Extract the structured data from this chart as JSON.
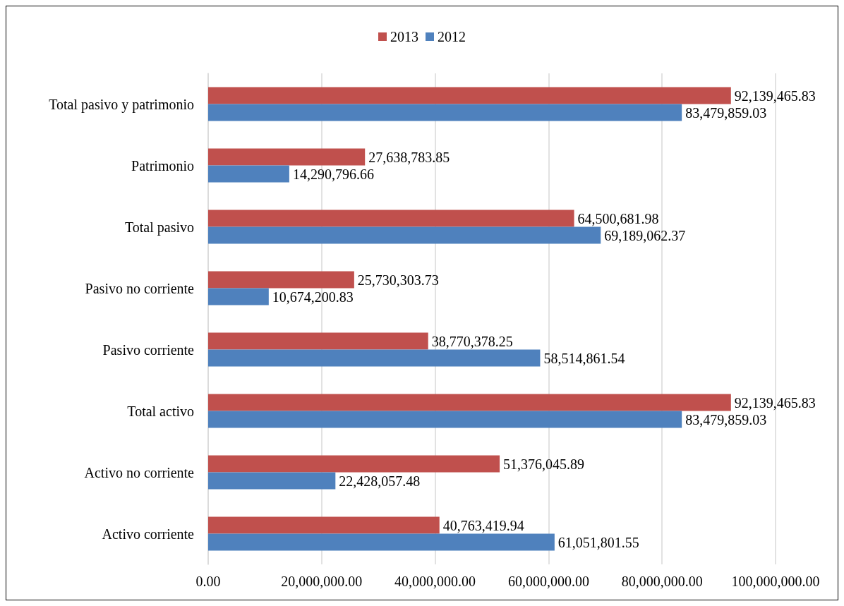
{
  "chart_data": {
    "type": "bar",
    "orientation": "horizontal",
    "categories": [
      "Total pasivo y patrimonio",
      "Patrimonio",
      "Total pasivo",
      "Pasivo no corriente",
      "Pasivo corriente",
      "Total activo",
      "Activo no corriente",
      "Activo corriente"
    ],
    "series": [
      {
        "name": "2013",
        "color": "#c0504d",
        "values": [
          92139465.83,
          27638783.85,
          64500681.98,
          25730303.73,
          38770378.25,
          92139465.83,
          51376045.89,
          40763419.94
        ],
        "value_labels": [
          "92,139,465.83",
          "27,638,783.85",
          "64,500,681.98",
          "25,730,303.73",
          "38,770,378.25",
          "92,139,465.83",
          "51,376,045.89",
          "40,763,419.94"
        ]
      },
      {
        "name": "2012",
        "color": "#4f81bd",
        "values": [
          83479859.03,
          14290796.66,
          69189062.37,
          10674200.83,
          58514861.54,
          83479859.03,
          22428057.48,
          61051801.55
        ],
        "value_labels": [
          "83,479,859.03",
          "14,290,796.66",
          "69,189,062.37",
          "10,674,200.83",
          "58,514,861.54",
          "83,479,859.03",
          "22,428,057.48",
          "61,051,801.55"
        ]
      }
    ],
    "xlim": [
      0,
      100000000
    ],
    "xticks": [
      {
        "value": 0,
        "label": "0.00"
      },
      {
        "value": 20000000,
        "label": "20,000,000.00"
      },
      {
        "value": 40000000,
        "label": "40,000,000.00"
      },
      {
        "value": 60000000,
        "label": "60,000,000.00"
      },
      {
        "value": 80000000,
        "label": "80,000,000.00"
      },
      {
        "value": 100000000,
        "label": "100,000,000.00"
      }
    ],
    "grid": "x",
    "legend": "top"
  }
}
